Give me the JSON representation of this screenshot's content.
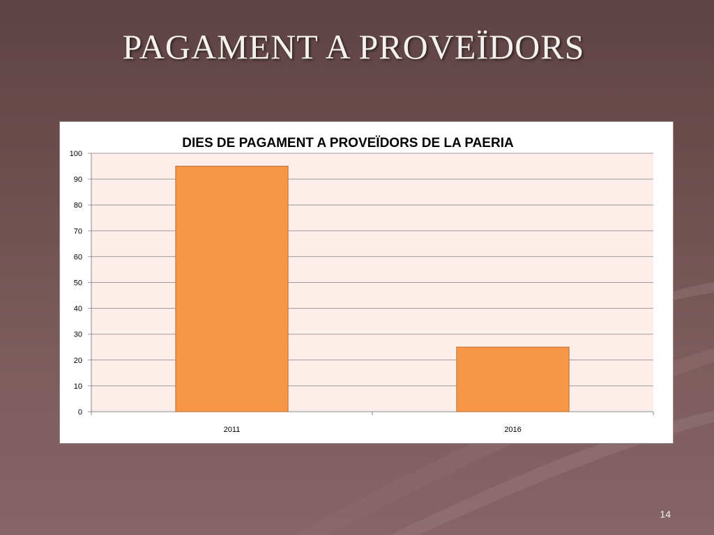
{
  "slide": {
    "title": "PAGAMENT A PROVEÏDORS",
    "page_number": "14",
    "background_color": "#6e4f50",
    "title_color": "#f4f1ee"
  },
  "chart_data": {
    "type": "bar",
    "title": "DIES DE PAGAMENT A PROVEÏDORS DE LA PAERIA",
    "categories": [
      "2011",
      "2016"
    ],
    "values": [
      95,
      25
    ],
    "ylim": [
      0,
      100
    ],
    "yticks": [
      0,
      10,
      20,
      30,
      40,
      50,
      60,
      70,
      80,
      90,
      100
    ],
    "xlabel": "",
    "ylabel": "",
    "grid": true,
    "legend": "none",
    "bar_color": "#f79646",
    "bar_edge_color": "#b66d31",
    "plot_background": "#fdeee9"
  }
}
